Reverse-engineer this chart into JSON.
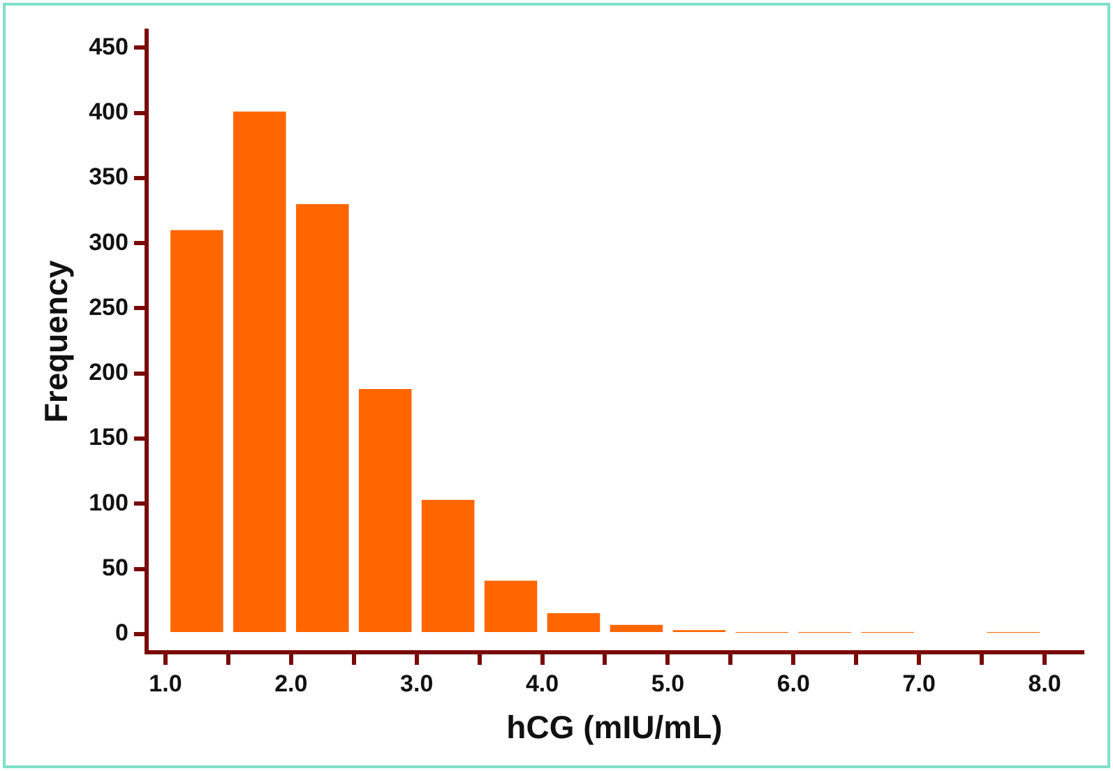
{
  "chart_data": {
    "type": "histogram",
    "xlabel": "hCG (mIU/mL)",
    "ylabel": "Frequency",
    "bins": [
      1.0,
      1.5,
      2.0,
      2.5,
      3.0,
      3.5,
      4.0,
      4.5,
      5.0,
      5.5,
      6.0,
      6.5,
      7.0,
      7.5,
      8.0
    ],
    "values": [
      310,
      401,
      330,
      188,
      103,
      41,
      16,
      7,
      3,
      1,
      1,
      1,
      0,
      1
    ],
    "color": "#ff6600",
    "xlim": [
      0.85,
      8.3
    ],
    "xticks": [
      {
        "value": 1.0,
        "label": "1.0"
      },
      {
        "value": 1.5,
        "label": null
      },
      {
        "value": 2.0,
        "label": "2.0"
      },
      {
        "value": 2.5,
        "label": null
      },
      {
        "value": 3.0,
        "label": "3.0"
      },
      {
        "value": 3.5,
        "label": null
      },
      {
        "value": 4.0,
        "label": "4.0"
      },
      {
        "value": 4.5,
        "label": null
      },
      {
        "value": 5.0,
        "label": "5.0"
      },
      {
        "value": 5.5,
        "label": null
      },
      {
        "value": 6.0,
        "label": "6.0"
      },
      {
        "value": 6.5,
        "label": null
      },
      {
        "value": 7.0,
        "label": "7.0"
      },
      {
        "value": 7.5,
        "label": null
      },
      {
        "value": 8.0,
        "label": "8.0"
      }
    ],
    "ylim": [
      -14,
      463
    ],
    "yticks": [
      0,
      50,
      100,
      150,
      200,
      250,
      300,
      350,
      400,
      450
    ],
    "grid": false,
    "legend": false
  }
}
